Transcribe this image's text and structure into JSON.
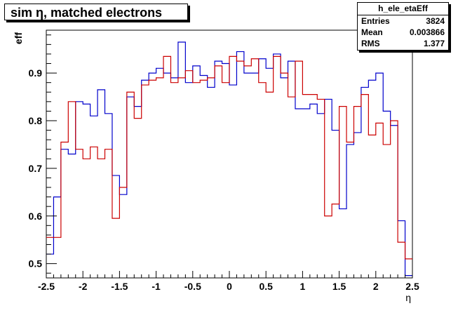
{
  "title": "sim η,  matched electrons",
  "stats": {
    "name": "h_ele_etaEff",
    "rows": [
      {
        "label": "Entries",
        "value": "3824"
      },
      {
        "label": "Mean",
        "value": "0.003866"
      },
      {
        "label": "RMS",
        "value": "1.377"
      }
    ]
  },
  "chart_data": {
    "type": "line",
    "xlabel": "η",
    "ylabel": "eff",
    "xlim": [
      -2.5,
      2.5
    ],
    "ylim": [
      0.47,
      0.99
    ],
    "x_ticks": [
      "-2.5",
      "-2",
      "-1.5",
      "-1",
      "-0.5",
      "0",
      "0.5",
      "1",
      "1.5",
      "2",
      "2.5"
    ],
    "y_ticks": [
      "0.5",
      "0.6",
      "0.7",
      "0.8",
      "0.9"
    ],
    "bin_edges_start": -2.5,
    "bin_width": 0.1,
    "series": [
      {
        "color": "#0000cc",
        "values": [
          0.52,
          0.64,
          0.74,
          0.73,
          0.84,
          0.835,
          0.81,
          0.865,
          0.815,
          0.685,
          0.645,
          0.85,
          0.83,
          0.885,
          0.9,
          0.91,
          0.9,
          0.89,
          0.965,
          0.88,
          0.915,
          0.895,
          0.87,
          0.925,
          0.92,
          0.875,
          0.945,
          0.9,
          0.9,
          0.93,
          0.91,
          0.94,
          0.89,
          0.925,
          0.825,
          0.825,
          0.835,
          0.815,
          0.845,
          0.78,
          0.615,
          0.75,
          0.775,
          0.87,
          0.885,
          0.9,
          0.82,
          0.79,
          0.59,
          0.475
        ]
      },
      {
        "color": "#cc0000",
        "values": [
          0.555,
          0.555,
          0.755,
          0.84,
          0.74,
          0.72,
          0.745,
          0.72,
          0.74,
          0.595,
          0.66,
          0.86,
          0.805,
          0.875,
          0.885,
          0.89,
          0.935,
          0.88,
          0.89,
          0.905,
          0.88,
          0.885,
          0.89,
          0.915,
          0.88,
          0.935,
          0.925,
          0.915,
          0.93,
          0.88,
          0.86,
          0.935,
          0.9,
          0.85,
          0.925,
          0.855,
          0.855,
          0.845,
          0.6,
          0.625,
          0.83,
          0.755,
          0.83,
          0.855,
          0.77,
          0.795,
          0.75,
          0.8,
          0.545,
          0.51
        ]
      }
    ]
  }
}
